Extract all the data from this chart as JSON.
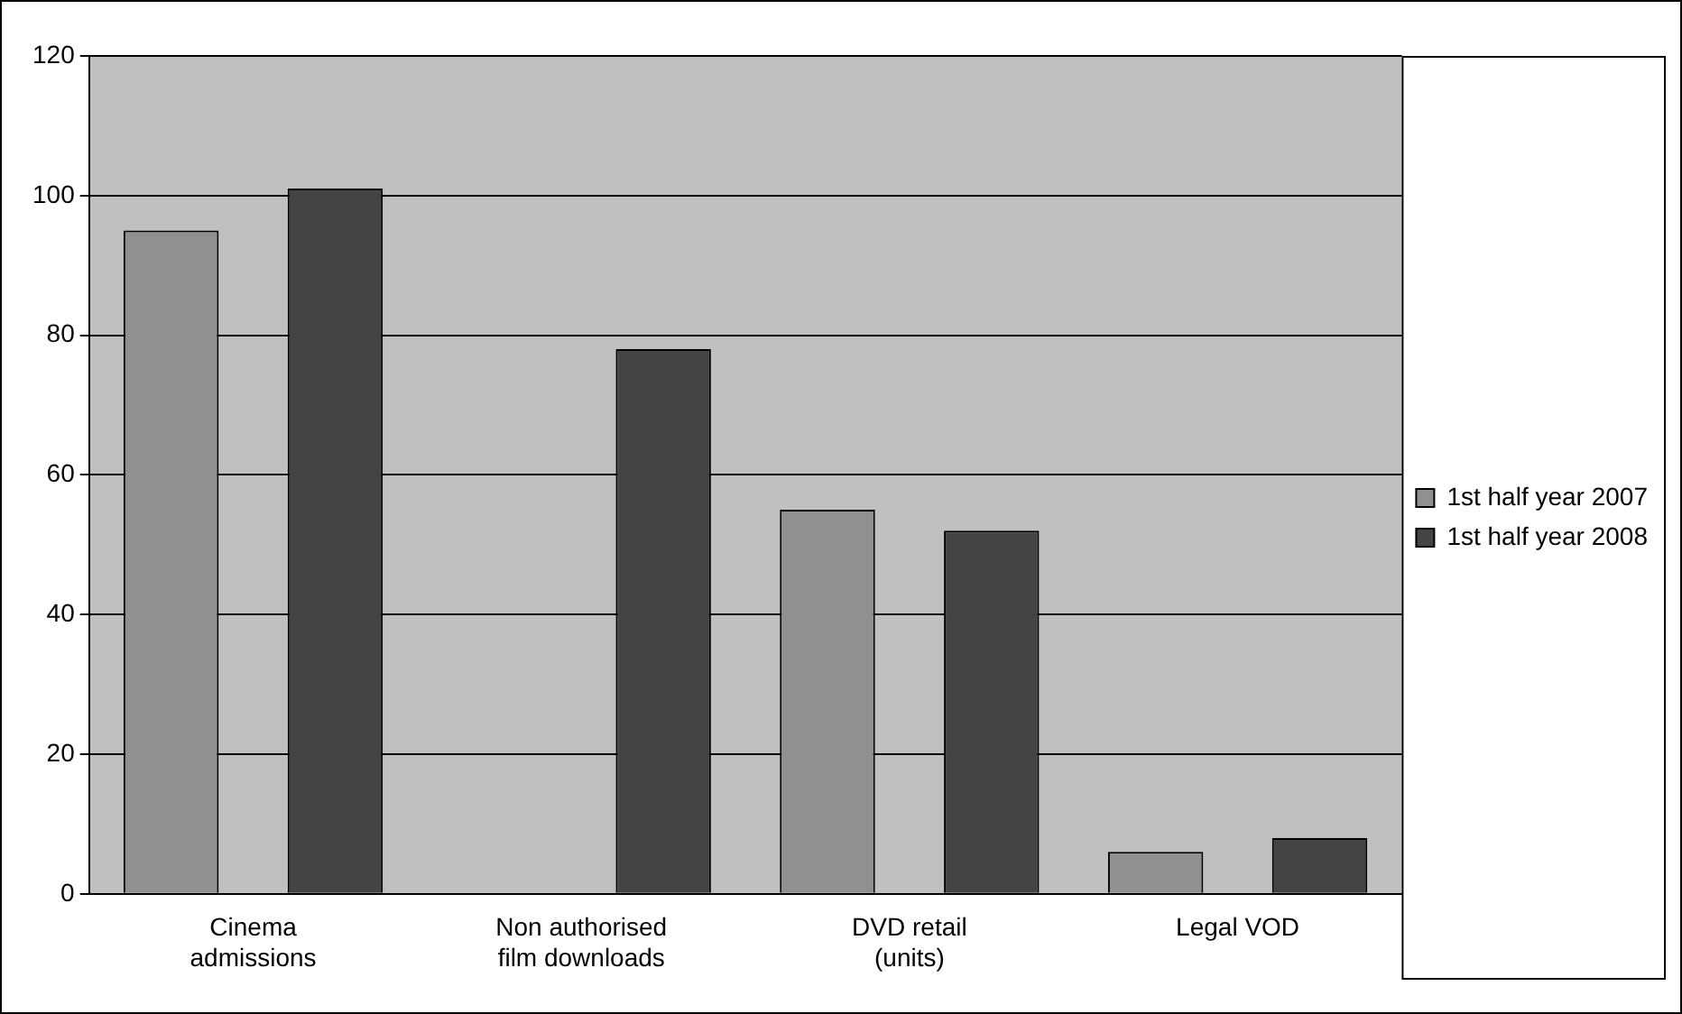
{
  "chart_data": {
    "type": "bar",
    "categories": [
      "Cinema admissions",
      "Non authorised film downloads",
      "DVD retail (units)",
      "Legal VOD"
    ],
    "series": [
      {
        "name": "1st half year 2007",
        "color": "#909090",
        "values": [
          95,
          null,
          55,
          6
        ]
      },
      {
        "name": "1st half year 2008",
        "color": "#444444",
        "values": [
          101,
          78,
          52,
          8
        ]
      }
    ],
    "ylim": [
      0,
      120
    ],
    "yticks": [
      0,
      20,
      40,
      60,
      80,
      100,
      120
    ],
    "grid": "y",
    "legend": "right"
  }
}
